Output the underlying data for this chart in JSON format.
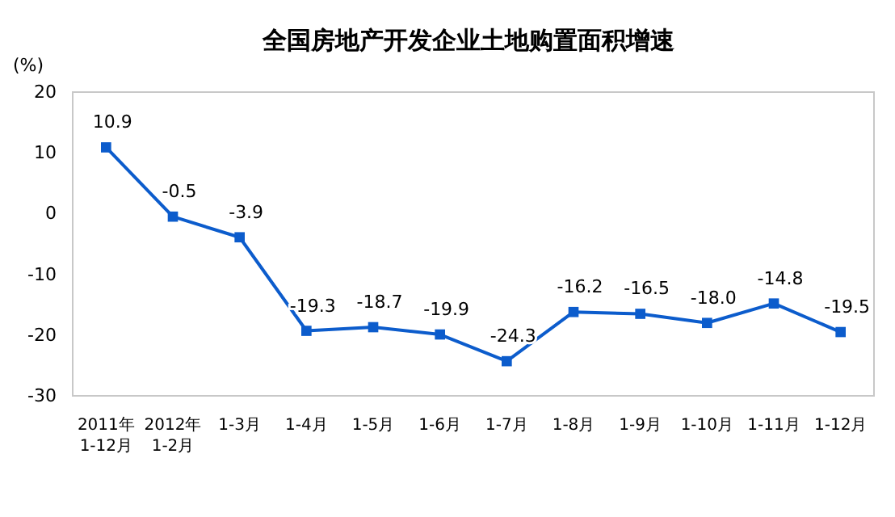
{
  "chart_data": {
    "type": "line",
    "title": "全国房地产开发企业土地购置面积增速",
    "ylabel": "(%)",
    "categories": [
      "2011年\n1-12月",
      "2012年\n1-2月",
      "1-3月",
      "1-4月",
      "1-5月",
      "1-6月",
      "1-7月",
      "1-8月",
      "1-9月",
      "1-10月",
      "1-11月",
      "1-12月"
    ],
    "series": [
      {
        "color": "#0c5ccc",
        "values": [
          10.9,
          -0.5,
          -3.9,
          -19.3,
          -18.7,
          -19.9,
          -24.3,
          -16.2,
          -16.5,
          -18.0,
          -14.8,
          -19.5
        ]
      }
    ],
    "ylim": [
      -30,
      20
    ],
    "yticks": [
      -30,
      -20,
      -10,
      0,
      10,
      20
    ],
    "value_labels": [
      "10.9",
      "-0.5",
      "-3.9",
      "-19.3",
      "-18.7",
      "-19.9",
      "-24.3",
      "-16.2",
      "-16.5",
      "-18.0",
      "-14.8",
      "-19.5"
    ],
    "marker": "square",
    "line_style": "solid"
  }
}
